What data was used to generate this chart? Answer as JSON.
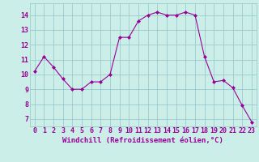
{
  "x": [
    0,
    1,
    2,
    3,
    4,
    5,
    6,
    7,
    8,
    9,
    10,
    11,
    12,
    13,
    14,
    15,
    16,
    17,
    18,
    19,
    20,
    21,
    22,
    23
  ],
  "y": [
    10.2,
    11.2,
    10.5,
    9.7,
    9.0,
    9.0,
    9.5,
    9.5,
    10.0,
    12.5,
    12.5,
    13.6,
    14.0,
    14.2,
    14.0,
    14.0,
    14.2,
    14.0,
    11.2,
    9.5,
    9.6,
    9.1,
    7.9,
    6.8
  ],
  "line_color": "#990099",
  "marker": "D",
  "marker_size": 2.0,
  "bg_color": "#cceee8",
  "grid_color": "#99cccc",
  "xlabel": "Windchill (Refroidissement éolien,°C)",
  "xlabel_color": "#990099",
  "xlabel_fontsize": 6.5,
  "tick_color": "#990099",
  "tick_fontsize": 6,
  "ylim": [
    6.5,
    14.8
  ],
  "yticks": [
    7,
    8,
    9,
    10,
    11,
    12,
    13,
    14
  ],
  "xticks": [
    0,
    1,
    2,
    3,
    4,
    5,
    6,
    7,
    8,
    9,
    10,
    11,
    12,
    13,
    14,
    15,
    16,
    17,
    18,
    19,
    20,
    21,
    22,
    23
  ],
  "xtick_labels": [
    "0",
    "1",
    "2",
    "3",
    "4",
    "5",
    "6",
    "7",
    "8",
    "9",
    "10",
    "11",
    "12",
    "13",
    "14",
    "15",
    "16",
    "17",
    "18",
    "19",
    "20",
    "21",
    "22",
    "23"
  ],
  "xlim": [
    -0.5,
    23.5
  ]
}
